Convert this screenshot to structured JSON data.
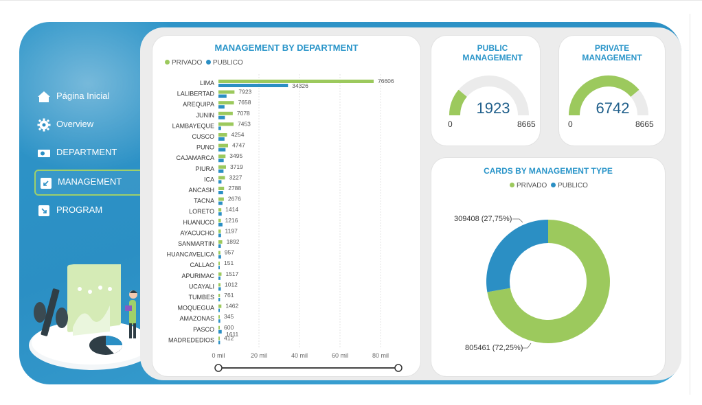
{
  "colors": {
    "frame": "#2b8fc4",
    "privado": "#9cc95d",
    "publico": "#2b8fc4",
    "title": "#2a95c9",
    "gauge_track": "#ebebeb",
    "active_border": "#9fd06a"
  },
  "nav": {
    "items": [
      {
        "label": "Página Inicial",
        "icon": "home-icon"
      },
      {
        "label": "Overview",
        "icon": "gear-icon"
      },
      {
        "label": "DEPARTMENT",
        "icon": "camera-icon"
      },
      {
        "label": "MANAGEMENT",
        "icon": "arrow-down-left-icon",
        "active": true
      },
      {
        "label": "PROGRAM",
        "icon": "arrow-down-right-icon"
      }
    ]
  },
  "dept_chart": {
    "title": "MANAGEMENT BY DEPARTMENT",
    "legend": [
      "PRIVADO",
      "PUBLICO"
    ]
  },
  "public_gauge": {
    "title_line1": "PUBLIC",
    "title_line2": "MANAGEMENT",
    "value": 1923,
    "value_label": "1923",
    "min": "0",
    "max": "8665",
    "max_value": 8665
  },
  "private_gauge": {
    "title_line1": "PRIVATE",
    "title_line2": "MANAGEMENT",
    "value": 6742,
    "value_label": "6742",
    "min": "0",
    "max": "8665",
    "max_value": 8665
  },
  "donut": {
    "title": "CARDS BY MANAGEMENT TYPE",
    "legend": [
      "PRIVADO",
      "PUBLICO"
    ],
    "publico_label": "309408 (27,75%)",
    "privado_label": "805461 (72,25%)"
  },
  "chart_data": [
    {
      "type": "bar",
      "orientation": "horizontal",
      "title": "MANAGEMENT BY DEPARTMENT",
      "categories": [
        "LIMA",
        "LALIBERTAD",
        "AREQUIPA",
        "JUNIN",
        "LAMBAYEQUE",
        "CUSCO",
        "PUNO",
        "CAJAMARCA",
        "PIURA",
        "ICA",
        "ANCASH",
        "TACNA",
        "LORETO",
        "HUANUCO",
        "AYACUCHO",
        "SANMARTIN",
        "HUANCAVELICA",
        "CALLAO",
        "APURIMAC",
        "UCAYALI",
        "TUMBES",
        "MOQUEGUA",
        "AMAZONAS",
        "PASCO",
        "MADREDEDIOS"
      ],
      "series": [
        {
          "name": "PRIVADO",
          "values": [
            76606,
            7923,
            7658,
            7078,
            7453,
            4254,
            4747,
            3495,
            3719,
            3227,
            2788,
            2676,
            1414,
            1216,
            1197,
            1892,
            957,
            151,
            1517,
            1012,
            761,
            1462,
            345,
            600,
            412
          ]
        },
        {
          "name": "PUBLICO",
          "values": [
            34326,
            4000,
            3000,
            3200,
            1300,
            3000,
            3500,
            2600,
            2500,
            1500,
            2300,
            2000,
            1600,
            2000,
            1300,
            1200,
            1300,
            600,
            1000,
            1200,
            800,
            600,
            900,
            1611,
            800
          ]
        }
      ],
      "x_ticks": [
        "0 mil",
        "20 mil",
        "40 mil",
        "60 mil",
        "80 mil"
      ],
      "xlim": [
        0,
        85000
      ],
      "legend": "top-left"
    },
    {
      "type": "pie",
      "title": "CARDS BY MANAGEMENT TYPE",
      "labels": [
        "PRIVADO",
        "PUBLICO"
      ],
      "values": [
        805461,
        309408
      ],
      "percent": [
        72.25,
        27.75
      ],
      "donut": true
    }
  ]
}
